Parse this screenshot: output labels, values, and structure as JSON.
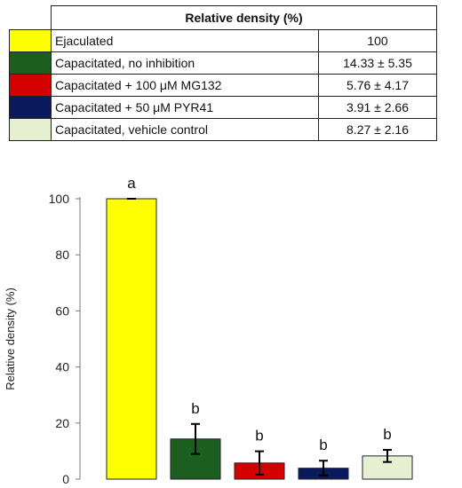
{
  "table": {
    "header": "Relative density (%)",
    "rows": [
      {
        "label": "Ejaculated",
        "value": "100",
        "color": "#ffff00"
      },
      {
        "label": "Capacitated, no inhibition",
        "value": "14.33 ± 5.35",
        "color": "#1b5e20"
      },
      {
        "label": "Capacitated + 100 μM MG132",
        "value": "5.76 ± 4.17",
        "color": "#d50000"
      },
      {
        "label": "Capacitated + 50 μM PYR41",
        "value": "3.91 ± 2.66",
        "color": "#0a1a5c"
      },
      {
        "label": "Capacitated, vehicle control",
        "value": "8.27 ± 2.16",
        "color": "#e6efcf"
      }
    ]
  },
  "chart_data": {
    "type": "bar",
    "title": "",
    "xlabel": "",
    "ylabel": "Relative density (%)",
    "ylim": [
      0,
      100
    ],
    "yticks": [
      0,
      20,
      40,
      60,
      80,
      100
    ],
    "grid": false,
    "categories": [
      "Ejaculated",
      "Capacitated, no inhibition",
      "Capacitated + 100 μM MG132",
      "Capacitated + 50 μM PYR41",
      "Capacitated, vehicle control"
    ],
    "values": [
      100,
      14.33,
      5.76,
      3.91,
      8.27
    ],
    "errors": [
      0,
      5.35,
      4.17,
      2.66,
      2.16
    ],
    "significance_labels": [
      "a",
      "b",
      "b",
      "b",
      "b"
    ],
    "colors": [
      "#ffff00",
      "#1b5e20",
      "#d50000",
      "#0a1a5c",
      "#e6efcf"
    ]
  }
}
